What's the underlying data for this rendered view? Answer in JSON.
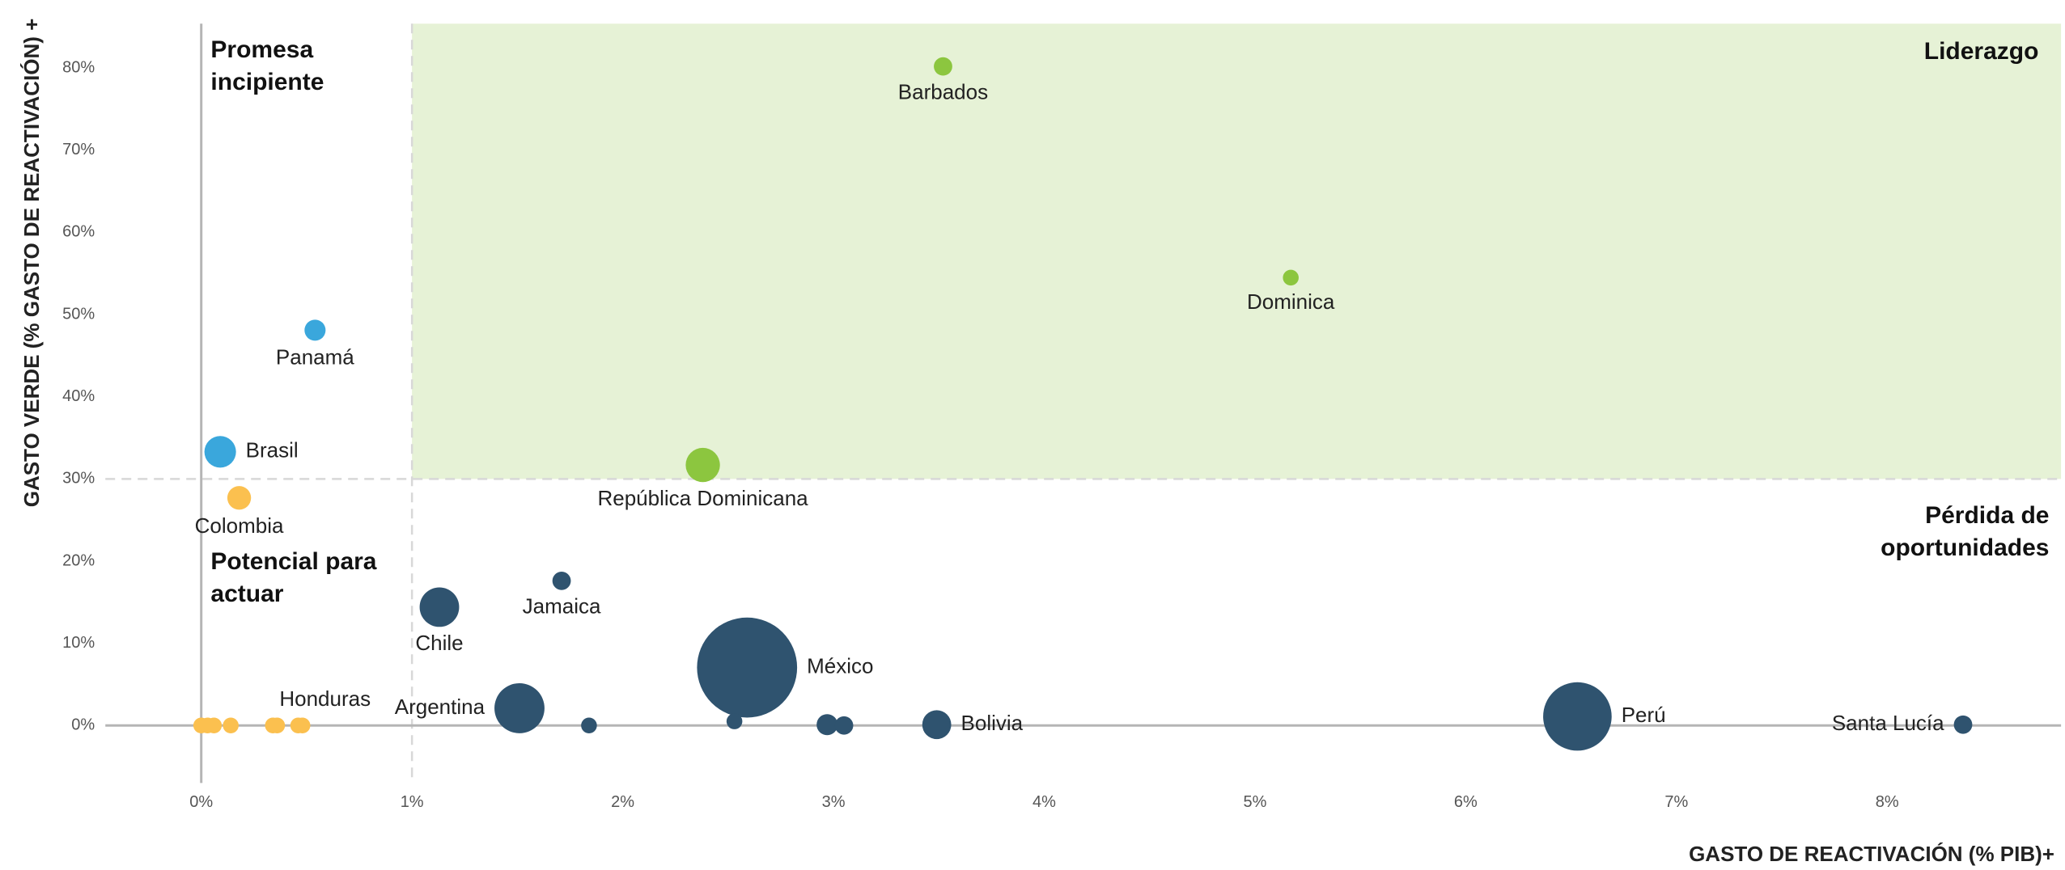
{
  "chart_data": {
    "type": "bubble",
    "xlabel": "GASTO DE REACTIVACIÓN (% PIB)+",
    "ylabel": "GASTO VERDE (% GASTO DE REACTIVACIÓN) +",
    "xlim": [
      -0.455,
      8.825
    ],
    "ylim": [
      -7,
      85.4
    ],
    "xticks": [
      {
        "value": 0,
        "label": "0%"
      },
      {
        "value": 1,
        "label": "1%"
      },
      {
        "value": 2,
        "label": "2%"
      },
      {
        "value": 3,
        "label": "3%"
      },
      {
        "value": 4,
        "label": "4%"
      },
      {
        "value": 5,
        "label": "5%"
      },
      {
        "value": 6,
        "label": "6%"
      },
      {
        "value": 7,
        "label": "7%"
      },
      {
        "value": 8,
        "label": "8%"
      }
    ],
    "yticks": [
      {
        "value": 0,
        "label": "0%"
      },
      {
        "value": 10,
        "label": "10%"
      },
      {
        "value": 20,
        "label": "20%"
      },
      {
        "value": 30,
        "label": "30%"
      },
      {
        "value": 40,
        "label": "40%"
      },
      {
        "value": 50,
        "label": "50%"
      },
      {
        "value": 60,
        "label": "60%"
      },
      {
        "value": 70,
        "label": "70%"
      },
      {
        "value": 80,
        "label": "80%"
      }
    ],
    "thresholds": {
      "x": 1,
      "y": 30
    },
    "highlight_color": "#e6f2d6",
    "annotations": [
      "Promesa incipiente",
      "Liderazgo",
      "Pérdida de oportunidades",
      "Potencial para actuar"
    ],
    "labels": [
      "Barbados",
      "Dominica",
      "Panamá",
      "Brasil",
      "República Dominicana",
      "Colombia",
      "Jamaica",
      "Chile",
      "México",
      "Argentina",
      "Perú",
      "Bolivia",
      "Santa Lucía",
      null,
      null,
      null,
      null,
      null,
      null,
      null,
      null,
      null,
      null,
      null,
      "Honduras"
    ],
    "x": [
      3.52,
      5.17,
      0.54,
      0.09,
      2.38,
      0.18,
      1.71,
      1.13,
      2.59,
      1.51,
      6.53,
      3.49,
      8.36,
      1.84,
      2.53,
      2.97,
      3.05,
      0,
      0.03,
      0.06,
      0.14,
      0.34,
      0.36,
      0.46,
      0.48
    ],
    "values": [
      80.2,
      54.5,
      48.1,
      33.3,
      31.7,
      27.7,
      17.6,
      14.4,
      7.05,
      2.1,
      1.1,
      0.1,
      0.1,
      0,
      0.5,
      0.1,
      0,
      0,
      0,
      0,
      0,
      0,
      0,
      0,
      0
    ],
    "sizes": [
      7,
      6,
      8,
      12,
      13,
      9,
      7,
      15,
      38,
      19,
      26,
      11,
      7,
      6,
      6,
      8,
      7,
      6,
      6,
      6,
      6,
      6,
      6,
      6,
      6
    ],
    "colors": [
      "#8cc63f",
      "#8cc63f",
      "#3aa7dc",
      "#3aa7dc",
      "#8cc63f",
      "#fbc04f",
      "#2f536f",
      "#2f536f",
      "#2f536f",
      "#2f536f",
      "#2f536f",
      "#2f536f",
      "#2f536f",
      "#2f536f",
      "#2f536f",
      "#2f536f",
      "#2f536f",
      "#fbc04f",
      "#fbc04f",
      "#fbc04f",
      "#fbc04f",
      "#fbc04f",
      "#fbc04f",
      "#fbc04f",
      "#fbc04f"
    ]
  }
}
